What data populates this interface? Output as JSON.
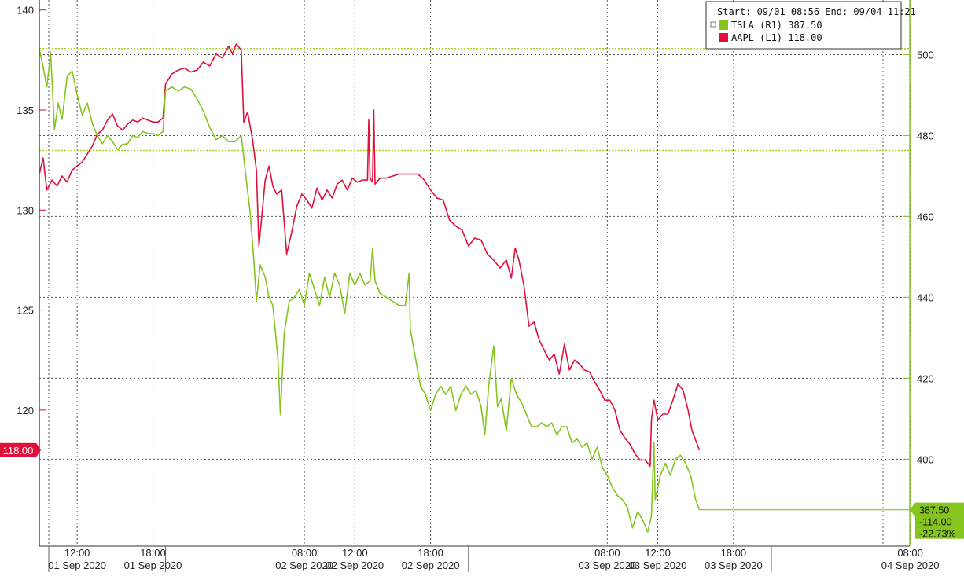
{
  "chart_data": {
    "type": "line",
    "legend": {
      "header": "Start: 09/01 08:56 End: 09/04 11:21",
      "placement": "top-right",
      "items": [
        {
          "label": "TSLA (R1) 387.50",
          "color": "#86c41e"
        },
        {
          "label": "AAPL (L1) 118.00",
          "color": "#e0103a"
        }
      ]
    },
    "left_axis": {
      "ylim": [
        113.2,
        140.5
      ],
      "ticks": [
        {
          "value": 140,
          "label": "140"
        },
        {
          "value": 135,
          "label": "135"
        },
        {
          "value": 130,
          "label": "130"
        },
        {
          "value": 125,
          "label": "125"
        },
        {
          "value": 120,
          "label": "120"
        }
      ],
      "last_value_label": "118.00",
      "last_value": 118.0
    },
    "right_axis": {
      "ylim": [
        378.5,
        513.5
      ],
      "ticks": [
        {
          "value": 500,
          "label": "500"
        },
        {
          "value": 480,
          "label": "480"
        },
        {
          "value": 460,
          "label": "460"
        },
        {
          "value": 440,
          "label": "440"
        },
        {
          "value": 420,
          "label": "420"
        },
        {
          "value": 400,
          "label": "400"
        }
      ],
      "last_value_labels": [
        "387.50",
        "-114.00",
        "-22.73%"
      ],
      "last_value": 387.5
    },
    "x_axis": {
      "range": [
        0,
        76
      ],
      "ticks": [
        {
          "t": 3,
          "label": "12:00",
          "date": "01 Sep 2020"
        },
        {
          "t": 9,
          "label": "18:00",
          "date": "01 Sep 2020"
        },
        {
          "t": 21,
          "label": "08:00",
          "date": "02 Sep 2020"
        },
        {
          "t": 25,
          "label": "12:00",
          "date": "02 Sep 2020"
        },
        {
          "t": 31,
          "label": "18:00",
          "date": "02 Sep 2020"
        },
        {
          "t": 45,
          "label": "08:00",
          "date": "03 Sep 2020"
        },
        {
          "t": 49,
          "label": "12:00",
          "date": "03 Sep 2020"
        },
        {
          "t": 55,
          "label": "18:00",
          "date": "03 Sep 2020"
        },
        {
          "t": 69,
          "label": "08:00",
          "date": "04 Sep 2020"
        }
      ],
      "day_breaks": [
        10,
        34,
        58
      ]
    },
    "reference_lines_right": [
      501.5,
      476.3
    ],
    "grid": true,
    "series": [
      {
        "name": "AAPL",
        "axis": "left",
        "color": "#e0103a",
        "points": [
          [
            0,
            131.8
          ],
          [
            0.3,
            132.6
          ],
          [
            0.6,
            131.0
          ],
          [
            1.0,
            131.5
          ],
          [
            1.4,
            131.2
          ],
          [
            1.8,
            131.7
          ],
          [
            2.2,
            131.4
          ],
          [
            2.6,
            132.0
          ],
          [
            3.0,
            132.2
          ],
          [
            3.4,
            132.4
          ],
          [
            3.8,
            132.8
          ],
          [
            4.2,
            133.2
          ],
          [
            4.6,
            133.8
          ],
          [
            5.0,
            134.0
          ],
          [
            5.4,
            134.5
          ],
          [
            5.8,
            134.8
          ],
          [
            6.2,
            134.2
          ],
          [
            6.6,
            134.0
          ],
          [
            7.0,
            134.3
          ],
          [
            7.4,
            134.5
          ],
          [
            7.8,
            134.4
          ],
          [
            8.2,
            134.6
          ],
          [
            8.6,
            134.5
          ],
          [
            9.0,
            134.4
          ],
          [
            9.4,
            134.4
          ],
          [
            9.8,
            134.6
          ],
          [
            10.0,
            136.3
          ],
          [
            10.5,
            136.8
          ],
          [
            11,
            137.0
          ],
          [
            11.5,
            137.1
          ],
          [
            12,
            136.9
          ],
          [
            12.5,
            137.0
          ],
          [
            13,
            137.4
          ],
          [
            13.5,
            137.2
          ],
          [
            14,
            137.8
          ],
          [
            14.5,
            137.6
          ],
          [
            15,
            138.2
          ],
          [
            15.3,
            137.8
          ],
          [
            15.6,
            138.3
          ],
          [
            16.0,
            138.0
          ],
          [
            16.2,
            134.4
          ],
          [
            16.5,
            134.9
          ],
          [
            16.9,
            133.5
          ],
          [
            17.2,
            132.0
          ],
          [
            17.4,
            128.2
          ],
          [
            17.6,
            129.5
          ],
          [
            17.9,
            131.5
          ],
          [
            18.2,
            132.2
          ],
          [
            18.5,
            131.2
          ],
          [
            18.8,
            130.8
          ],
          [
            19.2,
            131.0
          ],
          [
            19.6,
            127.8
          ],
          [
            20.0,
            128.9
          ],
          [
            20.4,
            130.2
          ],
          [
            20.8,
            130.8
          ],
          [
            21.2,
            130.5
          ],
          [
            21.6,
            130.1
          ],
          [
            22.0,
            131.1
          ],
          [
            22.4,
            130.5
          ],
          [
            22.8,
            131.0
          ],
          [
            23.2,
            130.6
          ],
          [
            23.6,
            131.3
          ],
          [
            24.0,
            131.5
          ],
          [
            24.4,
            131.0
          ],
          [
            24.8,
            131.6
          ],
          [
            25.2,
            131.4
          ],
          [
            25.6,
            131.5
          ],
          [
            26.0,
            131.5
          ],
          [
            26.1,
            134.5
          ],
          [
            26.2,
            131.6
          ],
          [
            26.4,
            131.4
          ],
          [
            26.5,
            135.0
          ],
          [
            26.6,
            131.3
          ],
          [
            27.0,
            131.6
          ],
          [
            27.5,
            131.6
          ],
          [
            28.0,
            131.7
          ],
          [
            28.5,
            131.8
          ],
          [
            29.0,
            131.8
          ],
          [
            29.5,
            131.8
          ],
          [
            30.0,
            131.8
          ],
          [
            30.5,
            131.5
          ],
          [
            31.0,
            131.0
          ],
          [
            31.5,
            130.6
          ],
          [
            32.0,
            130.5
          ],
          [
            32.5,
            129.5
          ],
          [
            33.0,
            129.2
          ],
          [
            33.5,
            129.0
          ],
          [
            34.0,
            128.2
          ],
          [
            34.5,
            128.6
          ],
          [
            35.0,
            128.5
          ],
          [
            35.5,
            127.8
          ],
          [
            36.0,
            127.5
          ],
          [
            36.5,
            127.1
          ],
          [
            37.0,
            127.5
          ],
          [
            37.4,
            126.6
          ],
          [
            37.7,
            128.1
          ],
          [
            38.0,
            127.5
          ],
          [
            38.4,
            126.2
          ],
          [
            38.8,
            124.2
          ],
          [
            39.2,
            124.4
          ],
          [
            39.6,
            123.5
          ],
          [
            40.0,
            123.0
          ],
          [
            40.4,
            122.5
          ],
          [
            40.8,
            122.8
          ],
          [
            41.2,
            121.8
          ],
          [
            41.6,
            123.3
          ],
          [
            42.0,
            122.0
          ],
          [
            42.4,
            122.5
          ],
          [
            42.8,
            122.3
          ],
          [
            43.2,
            122.0
          ],
          [
            43.6,
            121.9
          ],
          [
            44.0,
            121.4
          ],
          [
            44.4,
            121.0
          ],
          [
            44.8,
            120.5
          ],
          [
            45.2,
            120.5
          ],
          [
            45.6,
            120.0
          ],
          [
            46.0,
            119.0
          ],
          [
            46.4,
            118.6
          ],
          [
            46.8,
            118.3
          ],
          [
            47.2,
            117.8
          ],
          [
            47.6,
            117.5
          ],
          [
            48.0,
            117.5
          ],
          [
            48.4,
            117.2
          ],
          [
            48.5,
            119.5
          ],
          [
            48.7,
            120.5
          ],
          [
            49.0,
            119.5
          ],
          [
            49.4,
            119.8
          ],
          [
            49.8,
            119.8
          ],
          [
            50.2,
            120.5
          ],
          [
            50.6,
            121.3
          ],
          [
            51.0,
            121.0
          ],
          [
            51.4,
            120.0
          ],
          [
            51.7,
            119.0
          ],
          [
            52.0,
            118.5
          ],
          [
            52.3,
            118.0
          ]
        ]
      },
      {
        "name": "TSLA",
        "axis": "right",
        "color": "#86c41e",
        "points": [
          [
            0,
            501.5
          ],
          [
            0.3,
            497.0
          ],
          [
            0.6,
            492.0
          ],
          [
            0.9,
            500.5
          ],
          [
            1.2,
            481.5
          ],
          [
            1.5,
            488.0
          ],
          [
            1.8,
            484.0
          ],
          [
            2.2,
            494.5
          ],
          [
            2.6,
            496.0
          ],
          [
            3.0,
            490.0
          ],
          [
            3.4,
            485.0
          ],
          [
            3.8,
            488.0
          ],
          [
            4.2,
            483.0
          ],
          [
            4.6,
            480.0
          ],
          [
            5.0,
            478.0
          ],
          [
            5.4,
            480.0
          ],
          [
            5.8,
            478.5
          ],
          [
            6.2,
            476.5
          ],
          [
            6.6,
            477.8
          ],
          [
            7.0,
            478.0
          ],
          [
            7.4,
            480.0
          ],
          [
            7.8,
            479.5
          ],
          [
            8.2,
            481.0
          ],
          [
            8.6,
            480.5
          ],
          [
            9.0,
            480.5
          ],
          [
            9.4,
            480.0
          ],
          [
            9.8,
            481.0
          ],
          [
            10.0,
            491.0
          ],
          [
            10.5,
            492.0
          ],
          [
            11,
            491.0
          ],
          [
            11.5,
            492.0
          ],
          [
            12,
            491.5
          ],
          [
            12.5,
            489.0
          ],
          [
            13,
            486.0
          ],
          [
            13.5,
            482.0
          ],
          [
            14,
            479.0
          ],
          [
            14.5,
            480.0
          ],
          [
            15.0,
            478.5
          ],
          [
            15.5,
            478.5
          ],
          [
            16.0,
            480.0
          ],
          [
            16.4,
            469.0
          ],
          [
            16.7,
            461.0
          ],
          [
            17.0,
            449.0
          ],
          [
            17.2,
            439.0
          ],
          [
            17.5,
            448.0
          ],
          [
            17.9,
            445.0
          ],
          [
            18.2,
            440.0
          ],
          [
            18.5,
            438.0
          ],
          [
            18.9,
            425.0
          ],
          [
            19.1,
            411.0
          ],
          [
            19.4,
            431.0
          ],
          [
            19.8,
            439.0
          ],
          [
            20.2,
            440.0
          ],
          [
            20.6,
            442.0
          ],
          [
            21.0,
            438.0
          ],
          [
            21.4,
            446.0
          ],
          [
            21.8,
            442.0
          ],
          [
            22.2,
            438.0
          ],
          [
            22.6,
            445.0
          ],
          [
            23.0,
            440.0
          ],
          [
            23.4,
            446.0
          ],
          [
            23.8,
            443.0
          ],
          [
            24.2,
            436.0
          ],
          [
            24.6,
            446.0
          ],
          [
            25.0,
            443.0
          ],
          [
            25.4,
            446.0
          ],
          [
            25.8,
            443.0
          ],
          [
            26.2,
            444.0
          ],
          [
            26.4,
            452.0
          ],
          [
            26.6,
            444.0
          ],
          [
            27.0,
            441.0
          ],
          [
            27.5,
            440.0
          ],
          [
            28.0,
            439.0
          ],
          [
            28.5,
            438.0
          ],
          [
            29.0,
            438.0
          ],
          [
            29.3,
            446.0
          ],
          [
            29.4,
            432.0
          ],
          [
            29.8,
            425.0
          ],
          [
            30.2,
            418.0
          ],
          [
            30.6,
            416.0
          ],
          [
            31.0,
            412.0
          ],
          [
            31.4,
            416.0
          ],
          [
            31.8,
            418.0
          ],
          [
            32.2,
            416.0
          ],
          [
            32.6,
            418.0
          ],
          [
            33.0,
            412.0
          ],
          [
            33.4,
            416.0
          ],
          [
            33.8,
            418.0
          ],
          [
            34.2,
            416.0
          ],
          [
            34.6,
            417.0
          ],
          [
            35.0,
            413.0
          ],
          [
            35.3,
            406.0
          ],
          [
            35.6,
            418.0
          ],
          [
            36.0,
            428.0
          ],
          [
            36.3,
            413.0
          ],
          [
            36.6,
            415.0
          ],
          [
            37.0,
            407.0
          ],
          [
            37.4,
            420.0
          ],
          [
            37.8,
            416.0
          ],
          [
            38.2,
            414.0
          ],
          [
            38.6,
            411.0
          ],
          [
            39.0,
            408.0
          ],
          [
            39.4,
            408.0
          ],
          [
            39.8,
            409.0
          ],
          [
            40.2,
            408.0
          ],
          [
            40.6,
            409.0
          ],
          [
            41.0,
            406.0
          ],
          [
            41.4,
            408.0
          ],
          [
            41.8,
            408.0
          ],
          [
            42.2,
            404.0
          ],
          [
            42.6,
            405.0
          ],
          [
            43.0,
            403.0
          ],
          [
            43.4,
            404.0
          ],
          [
            43.8,
            400.0
          ],
          [
            44.2,
            403.0
          ],
          [
            44.6,
            398.0
          ],
          [
            45.0,
            396.0
          ],
          [
            45.4,
            393.0
          ],
          [
            45.8,
            391.0
          ],
          [
            46.2,
            390.0
          ],
          [
            46.6,
            388.0
          ],
          [
            47.0,
            383.0
          ],
          [
            47.4,
            387.0
          ],
          [
            47.8,
            385.0
          ],
          [
            48.2,
            382.0
          ],
          [
            48.5,
            386.0
          ],
          [
            48.7,
            404.0
          ],
          [
            48.8,
            390.0
          ],
          [
            49.2,
            396.0
          ],
          [
            49.6,
            399.0
          ],
          [
            50.0,
            396.0
          ],
          [
            50.4,
            400.0
          ],
          [
            50.8,
            401.0
          ],
          [
            51.2,
            399.0
          ],
          [
            51.6,
            396.0
          ],
          [
            52.0,
            390.0
          ],
          [
            52.3,
            387.5
          ]
        ]
      }
    ]
  }
}
